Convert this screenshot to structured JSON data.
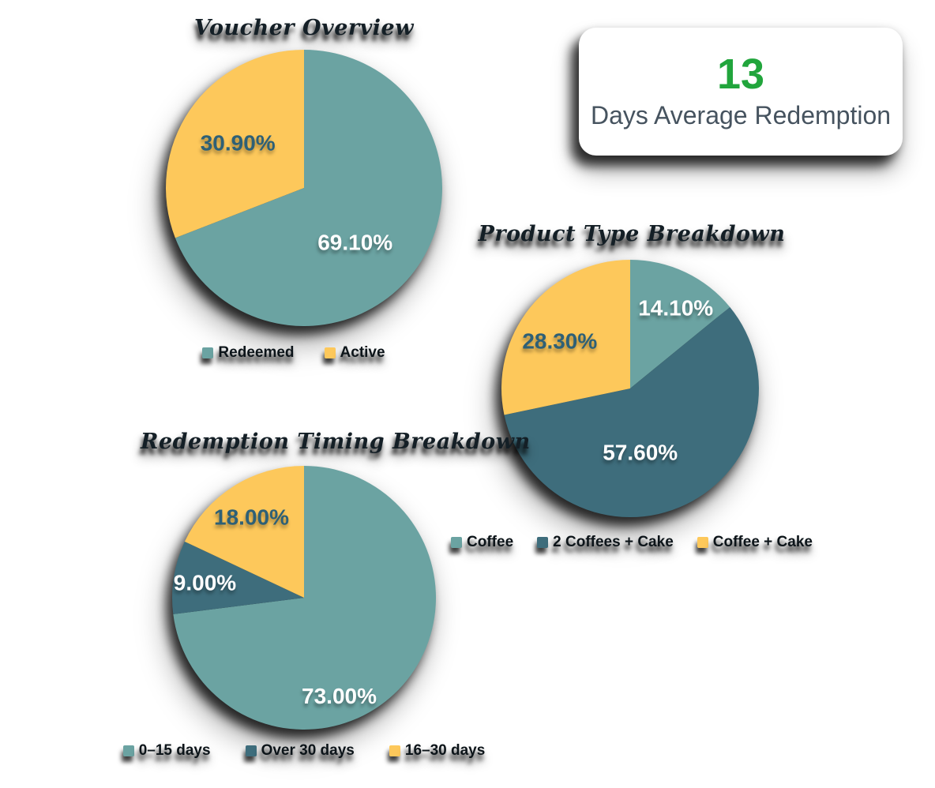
{
  "stat_card": {
    "value": "13",
    "label": "Days Average Redemption",
    "value_color": "#21a53c",
    "label_color": "#46535f"
  },
  "colors": {
    "teal": "#6ba3a2",
    "dark_teal": "#3e6d7c",
    "yellow": "#fdc85b",
    "slice_label_dark": "#2e6076",
    "slice_label_light": "#ffffff",
    "card_background": "#ffffff",
    "stat_green": "#21a53c"
  },
  "chart_data": [
    {
      "type": "pie",
      "title": "Voucher Overview",
      "legend_position": "bottom",
      "layout": {
        "radius": 175
      },
      "slices": [
        {
          "label": "Redeemed",
          "value": 69.1,
          "display": "69.10%",
          "color": "#6ba3a2",
          "text_color": "#ffffff",
          "label_r": 0.54,
          "label_pct": 55
        },
        {
          "label": "Active",
          "value": 30.9,
          "display": "30.90%",
          "color": "#fdc85b",
          "text_color": "#2e6076",
          "label_r": 0.58,
          "label_pct": 50
        }
      ]
    },
    {
      "type": "pie",
      "title": "Product Type Breakdown",
      "legend_position": "bottom",
      "layout": {
        "radius": 163
      },
      "slices": [
        {
          "label": "Coffee",
          "value": 14.1,
          "display": "14.10%",
          "color": "#6ba3a2",
          "text_color": "#ffffff",
          "label_r": 0.72,
          "label_pct": 58
        },
        {
          "label": "2 Coffees + Cake",
          "value": 57.6,
          "display": "57.60%",
          "color": "#3e6d7c",
          "text_color": "#ffffff",
          "label_r": 0.5,
          "label_pct": 58
        },
        {
          "label": "Coffee + Cake",
          "value": 28.3,
          "display": "28.30%",
          "color": "#fdc85b",
          "text_color": "#2e6076",
          "label_r": 0.66,
          "label_pct": 45
        }
      ]
    },
    {
      "type": "pie",
      "title": "Redemption Timing Breakdown",
      "legend_position": "bottom",
      "layout": {
        "radius": 167
      },
      "slices": [
        {
          "label": "0–15 days",
          "value": 73,
          "display": "73.00%",
          "color": "#6ba3a2",
          "text_color": "#ffffff",
          "label_r": 0.79,
          "label_pct": 61
        },
        {
          "label": "Over 30 days",
          "value": 9,
          "display": "9.00%",
          "color": "#3e6d7c",
          "text_color": "#ffffff",
          "label_r": 0.76,
          "label_pct": 49
        },
        {
          "label": "16–30 days",
          "value": 18,
          "display": "18.00%",
          "color": "#fdc85b",
          "text_color": "#2e6076",
          "label_r": 0.73,
          "label_pct": 49
        }
      ]
    }
  ]
}
